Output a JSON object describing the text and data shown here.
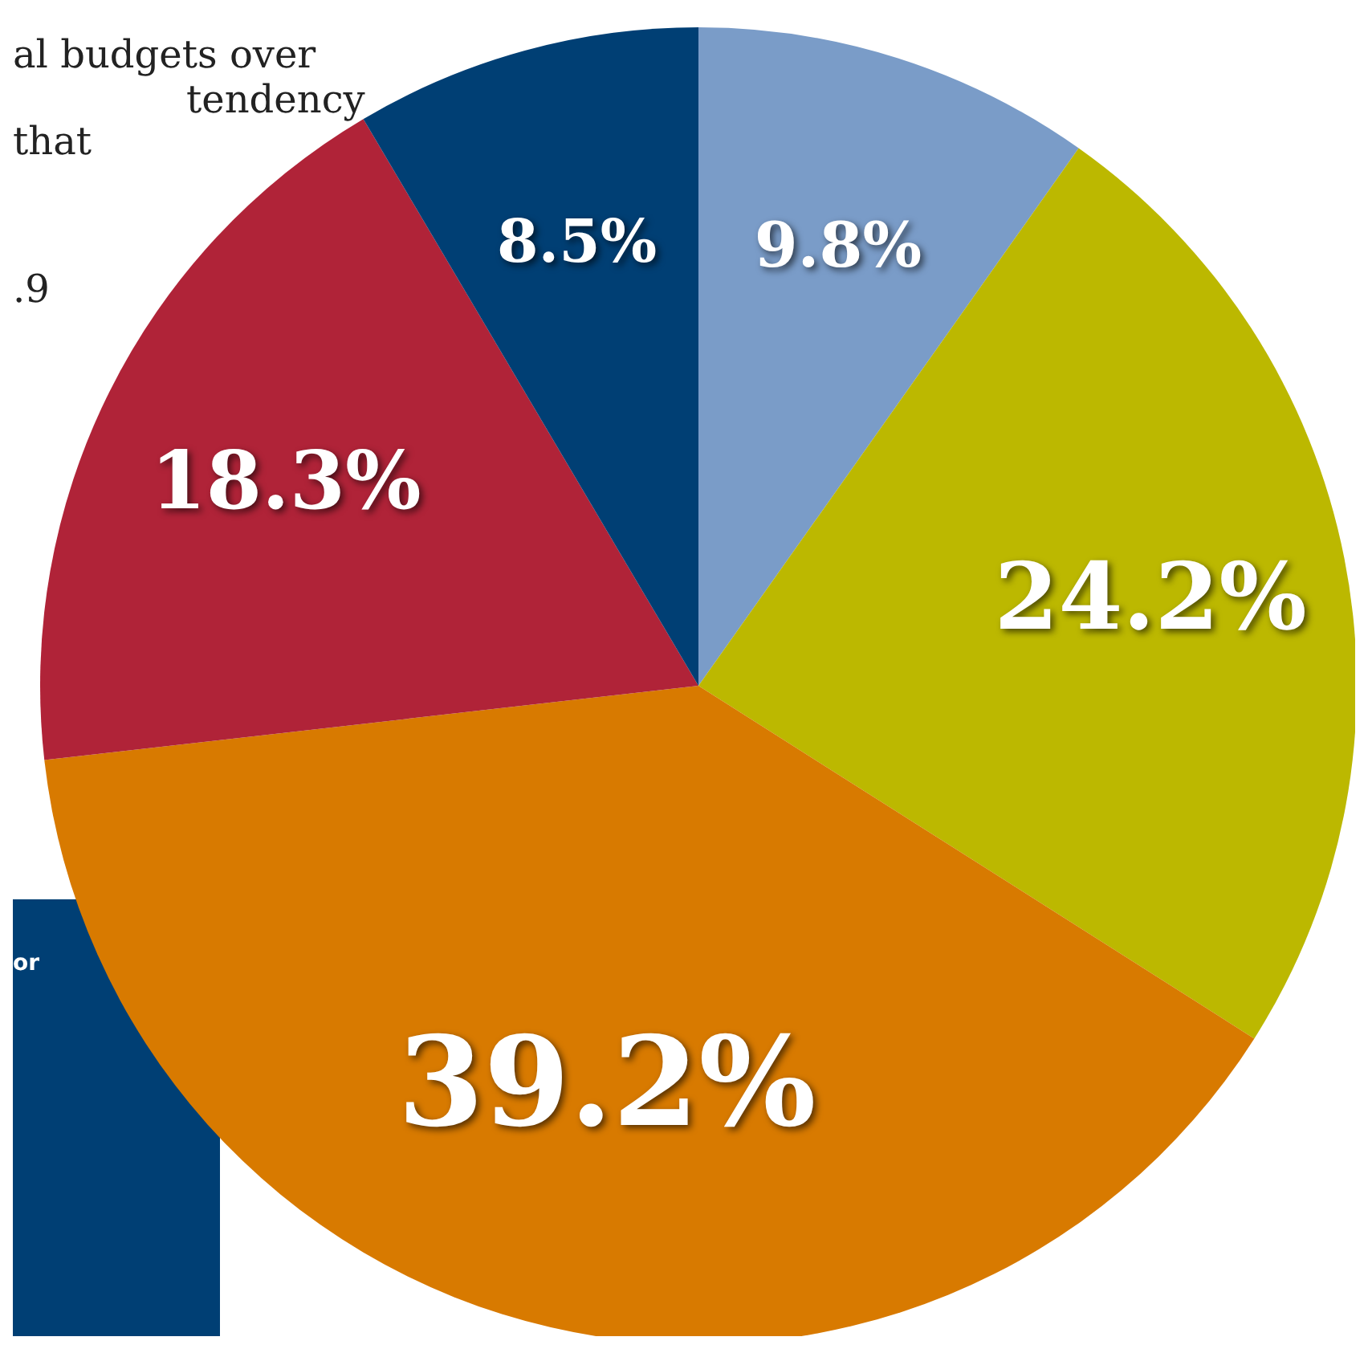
{
  "chart_data": {
    "type": "pie",
    "categories": [
      null,
      null,
      null,
      null,
      null
    ],
    "values": [
      9.8,
      24.2,
      39.2,
      18.3,
      8.5
    ],
    "colors": [
      "#7a9cc8",
      "#bcb800",
      "#d87a00",
      "#b02338",
      "#003f74"
    ],
    "value_labels": [
      "9.8%",
      "24.2%",
      "39.2%",
      "18.3%",
      "8.5%"
    ],
    "annotations": [
      "al budgets over",
      "tendency",
      "that",
      ".9",
      "or"
    ]
  }
}
